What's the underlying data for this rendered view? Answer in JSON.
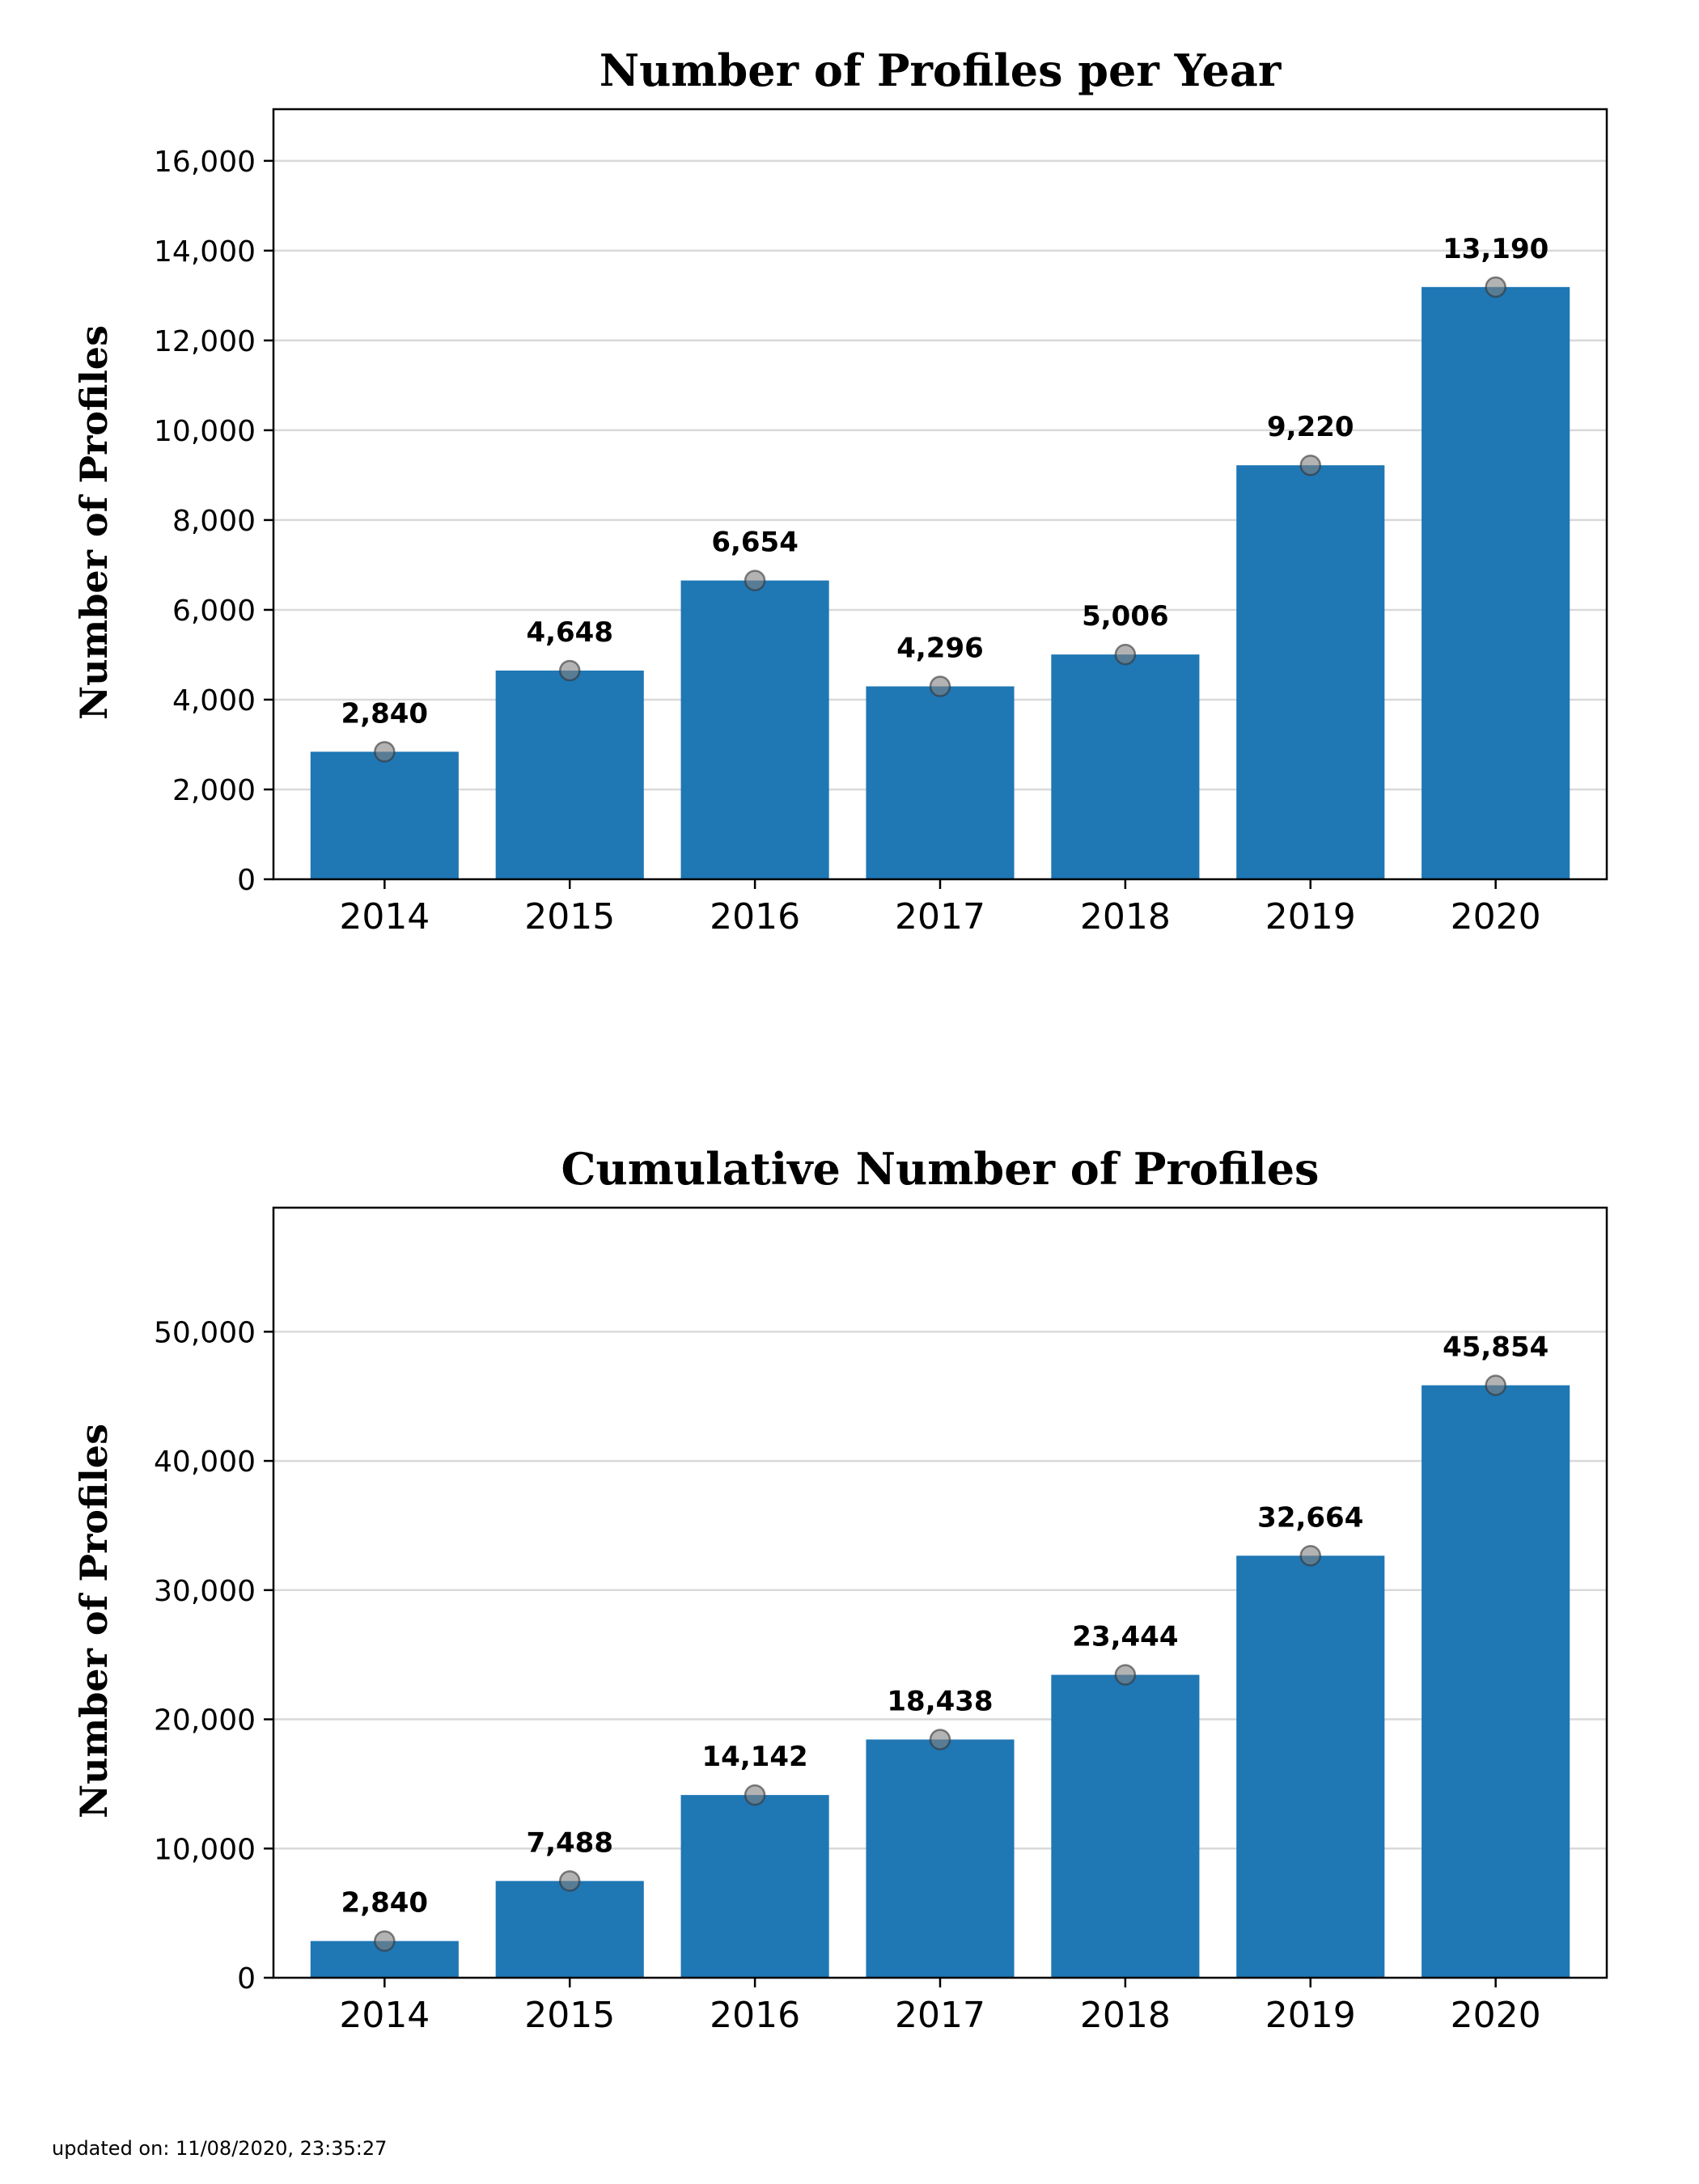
{
  "chart_data": [
    {
      "type": "bar",
      "title": "Number of Profiles per Year",
      "xlabel": "",
      "ylabel": "Number of Profiles",
      "categories": [
        "2014",
        "2015",
        "2016",
        "2017",
        "2018",
        "2019",
        "2020"
      ],
      "values": [
        2840,
        4648,
        6654,
        4296,
        5006,
        9220,
        13190
      ],
      "value_labels": [
        "2,840",
        "4,648",
        "6,654",
        "4,296",
        "5,006",
        "9,220",
        "13,190"
      ],
      "yticks": [
        0,
        2000,
        4000,
        6000,
        8000,
        10000,
        12000,
        14000,
        16000
      ],
      "ytick_labels": [
        "0",
        "2,000",
        "4,000",
        "6,000",
        "8,000",
        "10,000",
        "12,000",
        "14,000",
        "16,000"
      ],
      "ylim": [
        0,
        17150
      ],
      "grid": "horizontal",
      "bar_color": "#1f77b4",
      "marker_color": "#808080"
    },
    {
      "type": "bar",
      "title": "Cumulative Number of Profiles",
      "xlabel": "",
      "ylabel": "Number of Profiles",
      "categories": [
        "2014",
        "2015",
        "2016",
        "2017",
        "2018",
        "2019",
        "2020"
      ],
      "values": [
        2840,
        7488,
        14142,
        18438,
        23444,
        32664,
        45854
      ],
      "value_labels": [
        "2,840",
        "7,488",
        "14,142",
        "18,438",
        "23,444",
        "32,664",
        "45,854"
      ],
      "yticks": [
        0,
        10000,
        20000,
        30000,
        40000,
        50000
      ],
      "ytick_labels": [
        "0",
        "10,000",
        "20,000",
        "30,000",
        "40,000",
        "50,000"
      ],
      "ylim": [
        0,
        59600
      ],
      "grid": "horizontal",
      "bar_color": "#1f77b4",
      "marker_color": "#808080"
    }
  ],
  "footer": {
    "updated": "updated on: 11/08/2020, 23:35:27"
  }
}
